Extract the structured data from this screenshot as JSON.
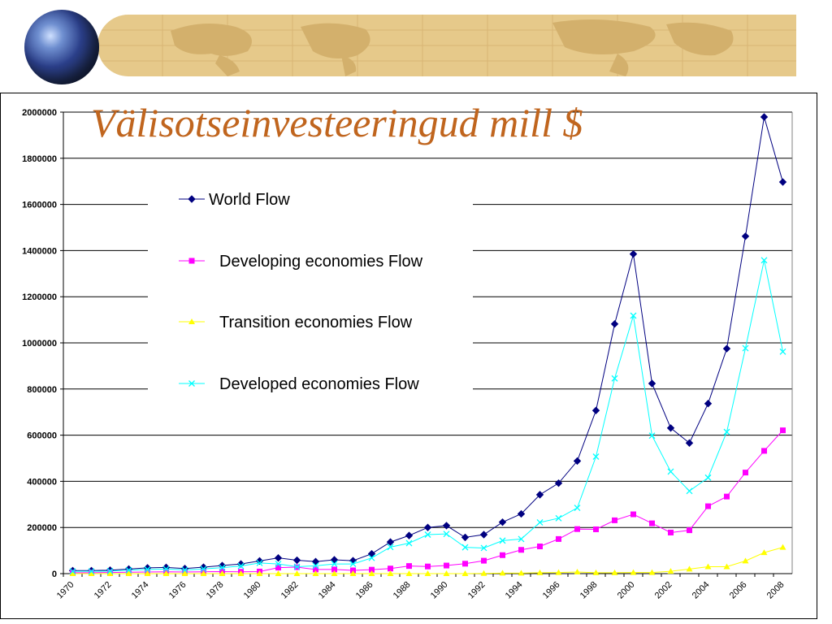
{
  "chart_data": {
    "type": "line",
    "title": "Välisotseinvesteeringud mill $",
    "xlabel": "",
    "ylabel": "",
    "ylim": [
      0,
      2000000
    ],
    "yticks": [
      0,
      200000,
      400000,
      600000,
      800000,
      1000000,
      1200000,
      1400000,
      1600000,
      1800000,
      2000000
    ],
    "ytick_labels": [
      "0",
      "200000",
      "400000",
      "600000",
      "800000",
      "1000000",
      "1200000",
      "1400000",
      "1600000",
      "1800000",
      "2000000"
    ],
    "xtick_labels": [
      "1970",
      "1972",
      "1974",
      "1976",
      "1978",
      "1980",
      "1982",
      "1984",
      "1986",
      "1988",
      "1990",
      "1992",
      "1994",
      "1996",
      "1998",
      "2000",
      "2002",
      "2004",
      "2006",
      "2008"
    ],
    "grid": true,
    "legend_position": "upper-left",
    "x": [
      1970,
      1971,
      1972,
      1973,
      1974,
      1975,
      1976,
      1977,
      1978,
      1979,
      1980,
      1981,
      1982,
      1983,
      1984,
      1985,
      1986,
      1987,
      1988,
      1989,
      1990,
      1991,
      1992,
      1993,
      1994,
      1995,
      1996,
      1997,
      1998,
      1999,
      2000,
      2001,
      2002,
      2003,
      2004,
      2005,
      2006,
      2007,
      2008
    ],
    "series": [
      {
        "name": "World Flow",
        "color": "#000080",
        "marker": "diamond",
        "values": [
          13000,
          13000,
          15000,
          20000,
          25000,
          27000,
          22000,
          28000,
          35000,
          42000,
          55000,
          68000,
          58000,
          52000,
          60000,
          56000,
          86000,
          137000,
          165000,
          200000,
          208000,
          157000,
          169000,
          223000,
          259000,
          342000,
          392000,
          488000,
          707000,
          1082000,
          1385000,
          824000,
          631000,
          566000,
          737000,
          975000,
          1462000,
          1979000,
          1697000
        ]
      },
      {
        "name": "Developing economies Flow",
        "color": "#ff00ff",
        "marker": "square",
        "values": [
          4000,
          4000,
          5000,
          6000,
          7000,
          8000,
          7000,
          8000,
          9000,
          8000,
          9000,
          26000,
          28000,
          18000,
          18000,
          14000,
          17000,
          22000,
          33000,
          31000,
          35000,
          43000,
          56000,
          80000,
          103000,
          118000,
          150000,
          193000,
          192000,
          231000,
          257000,
          218000,
          178000,
          188000,
          292000,
          334000,
          438000,
          532000,
          621000
        ]
      },
      {
        "name": "Transition economies Flow",
        "color": "#ffff00",
        "marker": "triangle",
        "values": [
          0,
          0,
          0,
          0,
          0,
          0,
          0,
          0,
          0,
          0,
          0,
          0,
          0,
          0,
          0,
          0,
          0,
          0,
          0,
          0,
          0,
          0,
          1000,
          2000,
          2000,
          4000,
          5000,
          7000,
          4000,
          4000,
          5000,
          5000,
          10000,
          20000,
          30000,
          30000,
          55000,
          91000,
          114000
        ]
      },
      {
        "name": "Developed economies Flow",
        "color": "#00ffff",
        "marker": "x",
        "values": [
          10000,
          10000,
          11000,
          15000,
          18000,
          20000,
          16000,
          20000,
          26000,
          33000,
          46000,
          42000,
          30000,
          34000,
          42000,
          42000,
          68000,
          115000,
          132000,
          169000,
          172000,
          114000,
          111000,
          143000,
          150000,
          222000,
          240000,
          285000,
          507000,
          846000,
          1118000,
          598000,
          442000,
          358000,
          416000,
          614000,
          977000,
          1358000,
          962000
        ]
      }
    ]
  }
}
